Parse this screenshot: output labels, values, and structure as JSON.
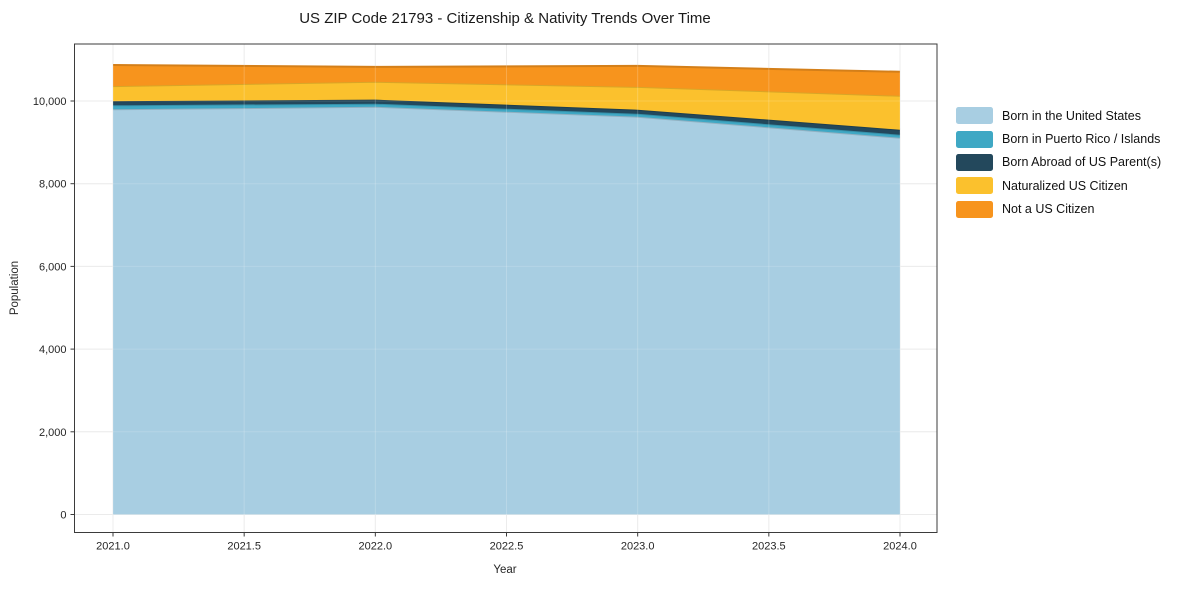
{
  "title": "US ZIP Code 21793 - Citizenship & Nativity Trends Over Time",
  "chart_data": {
    "type": "area",
    "stacked": true,
    "title": "US ZIP Code 21793 - Citizenship & Nativity Trends Over Time",
    "xlabel": "Year",
    "ylabel": "Population",
    "x": [
      2021,
      2022,
      2023,
      2024
    ],
    "x_ticks": [
      2021,
      2021.5,
      2022,
      2022.5,
      2023,
      2023.5,
      2024
    ],
    "x_tick_labels": [
      "2021.0",
      "2021.5",
      "2022.0",
      "2022.5",
      "2023.0",
      "2023.5",
      "2024.0"
    ],
    "y_ticks": [
      0,
      2000,
      4000,
      6000,
      8000,
      10000
    ],
    "y_tick_labels": [
      "0",
      "2,000",
      "4,000",
      "6,000",
      "8,000",
      "10,000"
    ],
    "xlim": [
      2020.85,
      2024.15
    ],
    "ylim": [
      -450,
      11400
    ],
    "grid": true,
    "legend_position": "right-outside",
    "series": [
      {
        "name": "Born in the United States",
        "color": "#A8CEE2",
        "values": [
          9800,
          9860,
          9620,
          9110
        ]
      },
      {
        "name": "Born in Puerto Rico / Islands",
        "color": "#3FA8C4",
        "values": [
          95,
          75,
          70,
          75
        ]
      },
      {
        "name": "Born Abroad of US Parent(s)",
        "color": "#23485C",
        "values": [
          100,
          100,
          100,
          120
        ]
      },
      {
        "name": "Naturalized US Citizen",
        "color": "#FBC12D",
        "values": [
          365,
          430,
          550,
          820
        ]
      },
      {
        "name": "Not a US Citizen",
        "color": "#F7941D",
        "values": [
          510,
          360,
          510,
          580
        ]
      }
    ],
    "totals": [
      10870,
      10825,
      10850,
      10705
    ]
  },
  "colors": {
    "grid": "#e8e8e8",
    "frame": "#3b3b3b",
    "text": "#262626"
  }
}
